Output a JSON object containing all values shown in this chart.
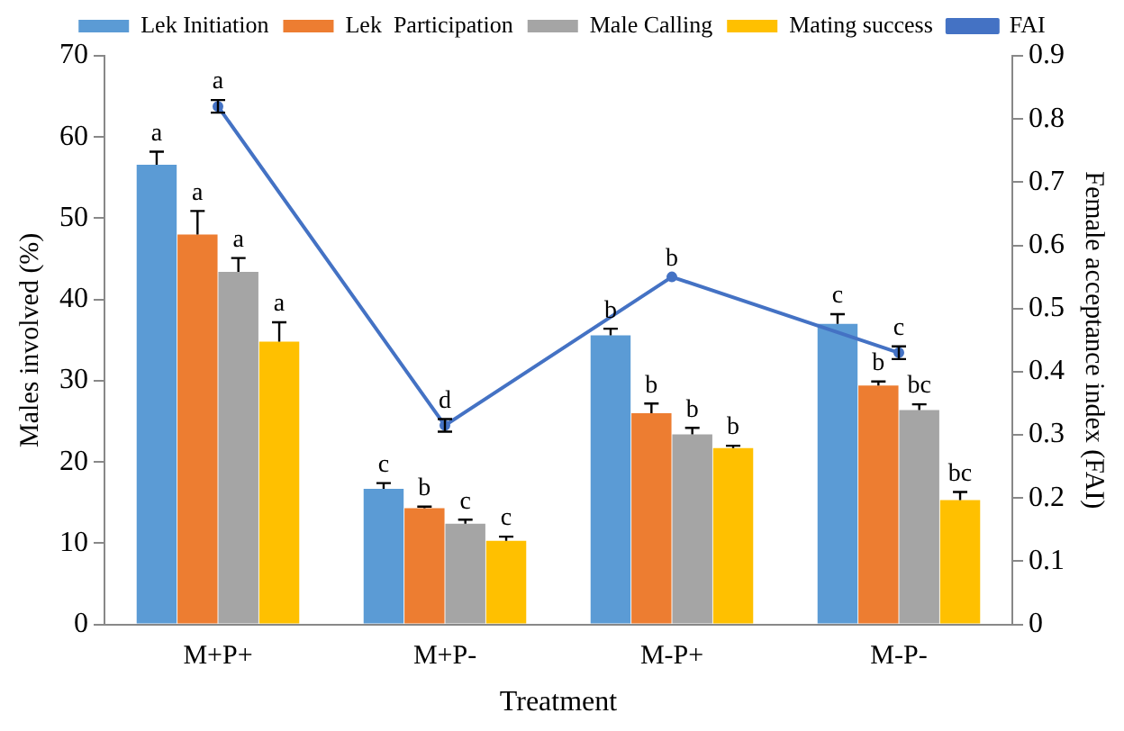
{
  "chart_data": {
    "type": "bar",
    "xlabel": "Treatment",
    "ylabel": "Males involved (%)",
    "y2label": "Female acceptance index (FAI)",
    "categories": [
      "M+P+",
      "M+P-",
      "M-P+",
      "M-P-"
    ],
    "ylim": [
      0,
      70
    ],
    "yticks": [
      0,
      10,
      20,
      30,
      40,
      50,
      60,
      70
    ],
    "y2lim": [
      0,
      0.9
    ],
    "y2ticks": [
      0,
      0.1,
      0.2,
      0.3,
      0.4,
      0.5,
      0.6,
      0.7,
      0.8,
      0.9
    ],
    "legend": "top",
    "series": [
      {
        "name": "Lek Initiation",
        "color": "#5b9bd5",
        "values": [
          56.6,
          16.7,
          35.6,
          37.0
        ],
        "errors": [
          [
            56.6,
            58.2
          ],
          [
            16.7,
            17.4
          ],
          [
            35.6,
            36.4
          ],
          [
            37.0,
            38.2
          ]
        ],
        "value_labels": [
          "a",
          "c",
          "b",
          "c"
        ]
      },
      {
        "name": "Lek  Participation",
        "color": "#ed7d31",
        "values": [
          48.0,
          14.3,
          26.0,
          29.4
        ],
        "errors": [
          [
            48.0,
            50.9
          ],
          [
            14.3,
            14.5
          ],
          [
            26.0,
            27.2
          ],
          [
            29.4,
            29.9
          ]
        ],
        "value_labels": [
          "a",
          "b",
          "b",
          "b"
        ]
      },
      {
        "name": "Male Calling",
        "color": "#a5a5a5",
        "values": [
          43.4,
          12.4,
          23.4,
          26.4
        ],
        "errors": [
          [
            43.4,
            45.1
          ],
          [
            12.4,
            12.9
          ],
          [
            23.4,
            24.2
          ],
          [
            26.4,
            27.1
          ]
        ],
        "value_labels": [
          "a",
          "c",
          "b",
          "bc"
        ]
      },
      {
        "name": "Mating success",
        "color": "#ffc000",
        "values": [
          34.8,
          10.3,
          21.7,
          15.3
        ],
        "errors": [
          [
            34.8,
            37.2
          ],
          [
            10.3,
            10.8
          ],
          [
            21.7,
            22.0
          ],
          [
            15.3,
            16.3
          ]
        ],
        "value_labels": [
          "a",
          "c",
          "b",
          "bc"
        ]
      },
      {
        "name": "FAI",
        "type": "line",
        "axis": "y2",
        "marker": "circle",
        "color": "#4472c4",
        "values": [
          0.82,
          0.315,
          0.55,
          0.43
        ],
        "errors": [
          0.01,
          0.01,
          null,
          0.01
        ],
        "value_labels": [
          "a",
          "d",
          "b",
          "c"
        ]
      }
    ]
  }
}
